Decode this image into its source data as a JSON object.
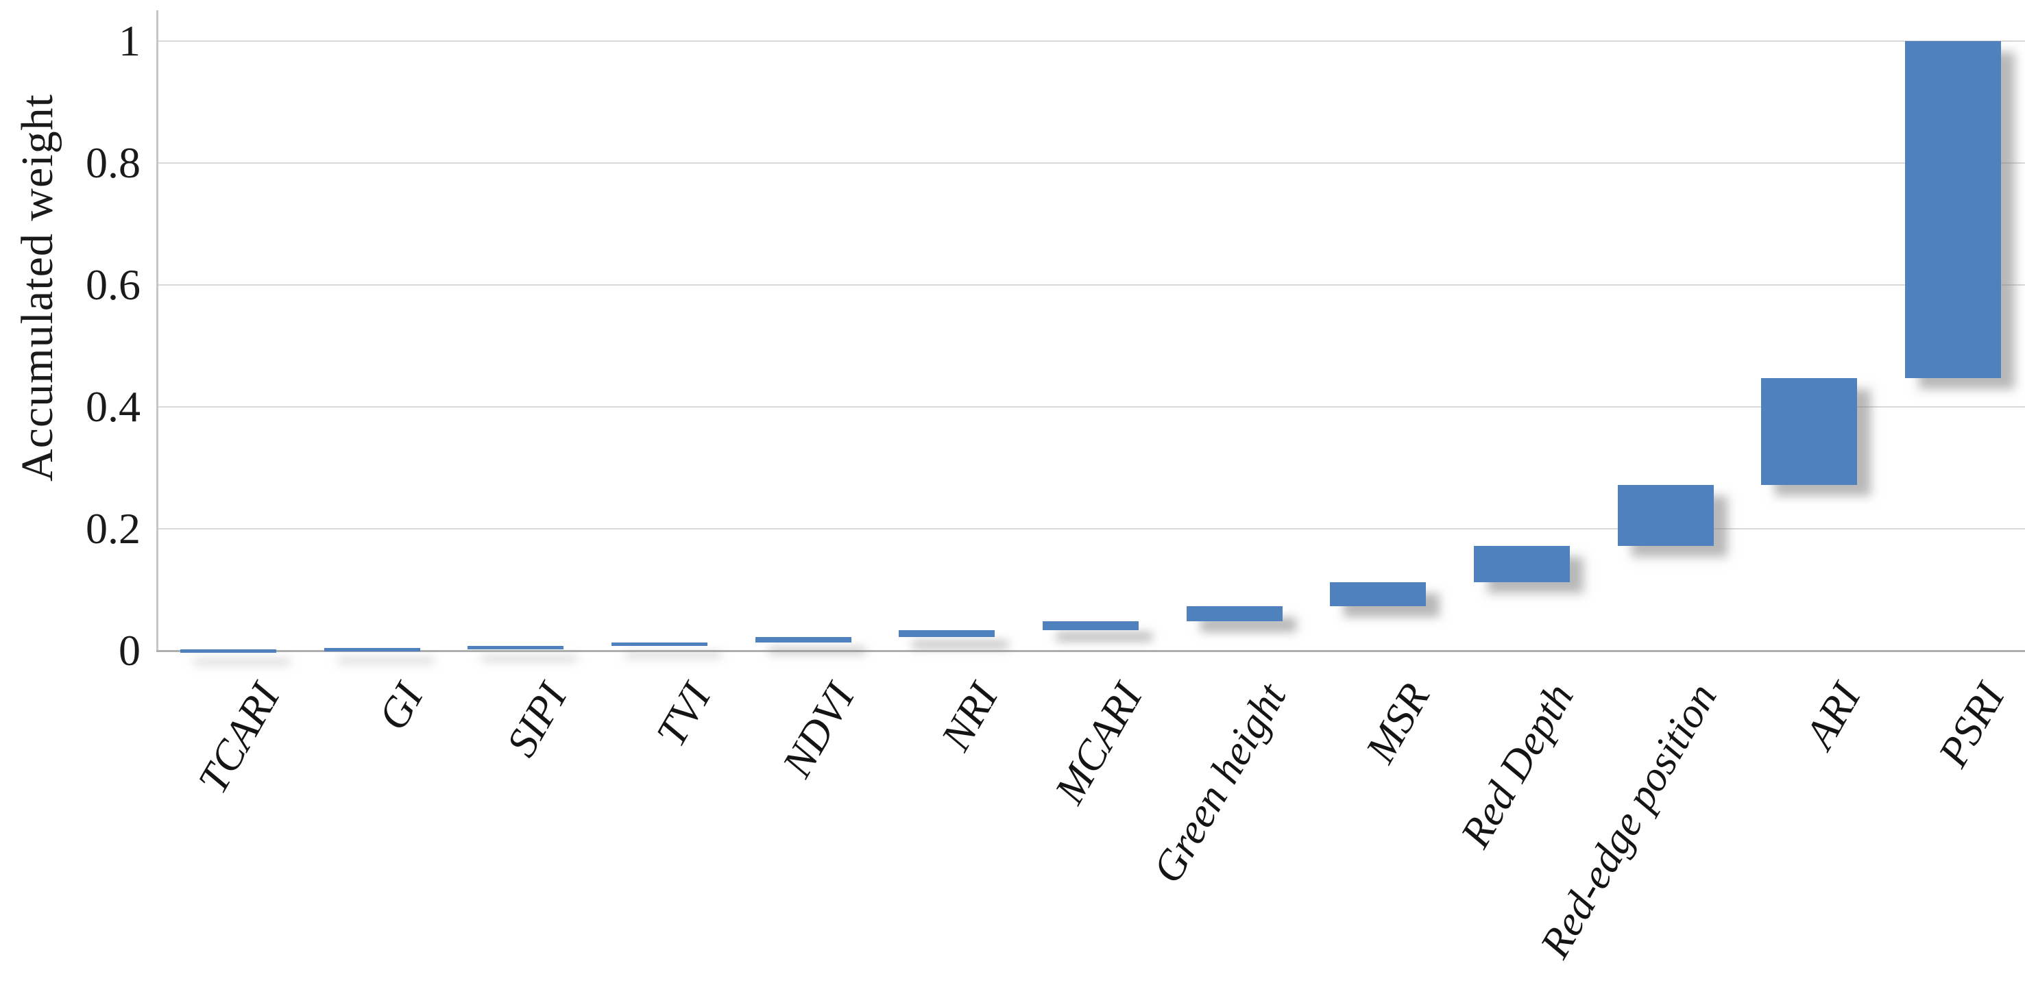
{
  "chart_data": {
    "type": "bar",
    "subtype": "waterfall-accumulated",
    "title": "",
    "xlabel": "",
    "ylabel": "Accumulated weight",
    "ylim": [
      0,
      1
    ],
    "yticks": [
      0,
      0.2,
      0.4,
      0.6,
      0.8,
      1
    ],
    "ytick_labels": [
      "0",
      "0.2",
      "0.4",
      "0.6",
      "0.8",
      "1"
    ],
    "grid": "horizontal-light",
    "legend_position": "none",
    "categories": [
      "TCARI",
      "GI",
      "SIPI",
      "TVI",
      "NDVI",
      "NRI",
      "MCARI",
      "Green height",
      "MSR",
      "Red Depth",
      "Red-edge position",
      "ARI",
      "PSRI"
    ],
    "series": [
      {
        "name": "Accumulated weight",
        "values": [
          0.002,
          0.002,
          0.004,
          0.005,
          0.01,
          0.011,
          0.014,
          0.025,
          0.039,
          0.06,
          0.1,
          0.175,
          0.553
        ]
      }
    ],
    "segments_cumulative": [
      {
        "category": "TCARI",
        "from": 0.0,
        "to": 0.002
      },
      {
        "category": "GI",
        "from": 0.002,
        "to": 0.004
      },
      {
        "category": "SIPI",
        "from": 0.004,
        "to": 0.008
      },
      {
        "category": "TVI",
        "from": 0.008,
        "to": 0.013
      },
      {
        "category": "NDVI",
        "from": 0.013,
        "to": 0.023
      },
      {
        "category": "NRI",
        "from": 0.023,
        "to": 0.034
      },
      {
        "category": "MCARI",
        "from": 0.034,
        "to": 0.048
      },
      {
        "category": "Green height",
        "from": 0.048,
        "to": 0.073
      },
      {
        "category": "MSR",
        "from": 0.073,
        "to": 0.112
      },
      {
        "category": "Red Depth",
        "from": 0.112,
        "to": 0.172
      },
      {
        "category": "Red-edge position",
        "from": 0.172,
        "to": 0.272
      },
      {
        "category": "ARI",
        "from": 0.272,
        "to": 0.447
      },
      {
        "category": "PSRI",
        "from": 0.447,
        "to": 1.0
      }
    ],
    "colors": {
      "bar": "#4e81bd",
      "gridline": "#d9d9d9",
      "axis_line": "#aeaeae",
      "text": "#1a1a1a",
      "background": "#ffffff"
    }
  }
}
